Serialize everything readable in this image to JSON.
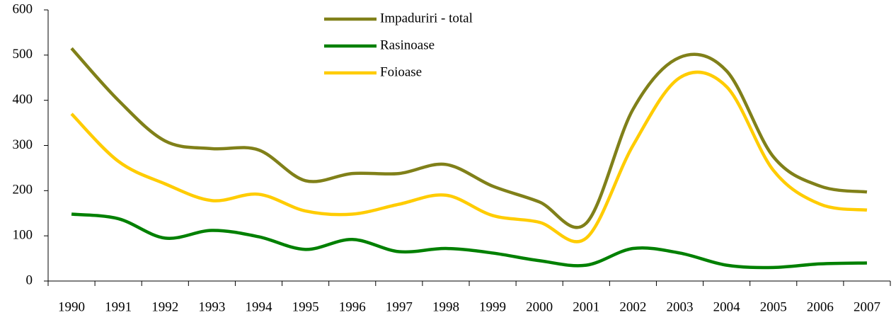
{
  "chart_data": {
    "type": "line",
    "categories": [
      "1990",
      "1991",
      "1992",
      "1993",
      "1994",
      "1995",
      "1996",
      "1997",
      "1998",
      "1999",
      "2000",
      "2001",
      "2002",
      "2003",
      "2004",
      "2005",
      "2006",
      "2007"
    ],
    "series": [
      {
        "name": "Impaduriri - total",
        "color": "#808019",
        "values": [
          515,
          400,
          310,
          293,
          290,
          222,
          238,
          238,
          258,
          210,
          175,
          128,
          380,
          495,
          465,
          275,
          210,
          197
        ]
      },
      {
        "name": "Rasinoase",
        "color": "#008000",
        "values": [
          148,
          138,
          95,
          112,
          98,
          70,
          92,
          65,
          72,
          62,
          45,
          35,
          72,
          62,
          35,
          30,
          38,
          40
        ]
      },
      {
        "name": "Foioase",
        "color": "#ffcc00",
        "values": [
          370,
          265,
          215,
          178,
          192,
          155,
          148,
          170,
          190,
          145,
          130,
          95,
          300,
          450,
          430,
          245,
          170,
          157
        ]
      }
    ],
    "ylim": [
      0,
      600
    ],
    "yticks": [
      0,
      100,
      200,
      300,
      400,
      500,
      600
    ],
    "grid": false,
    "legend": "top"
  }
}
